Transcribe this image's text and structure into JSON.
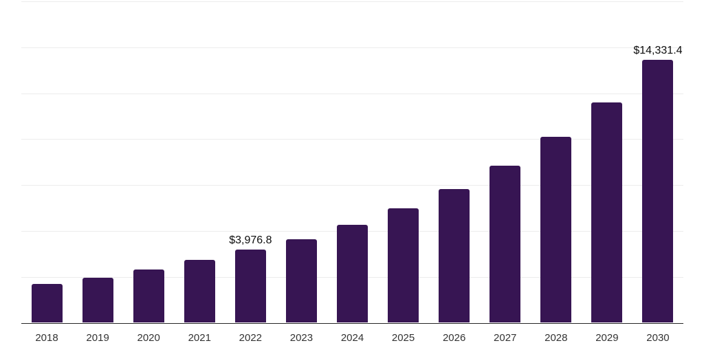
{
  "chart_data": {
    "type": "bar",
    "title": "",
    "xlabel": "",
    "ylabel": "",
    "categories": [
      "2018",
      "2019",
      "2020",
      "2021",
      "2022",
      "2023",
      "2024",
      "2025",
      "2026",
      "2027",
      "2028",
      "2029",
      "2030"
    ],
    "values": [
      2115,
      2465,
      2900,
      3425,
      3976.8,
      4565,
      5335,
      6230,
      7275,
      8540,
      10110,
      12010,
      14331.4
    ],
    "value_labels": {
      "2022": "$3,976.8",
      "2030": "$14,331.4"
    },
    "ylim": [
      0,
      17500
    ],
    "gridline_interval": 2500,
    "grid": "horizontal",
    "y_axis_tick_labels_visible": false,
    "legend": "none",
    "colors": {
      "bar": "#371553",
      "gridline": "#ececec",
      "axis_line": "#262626",
      "tick_label": "#333333",
      "value_label": "#0d0d0d",
      "background": "#ffffff"
    }
  }
}
